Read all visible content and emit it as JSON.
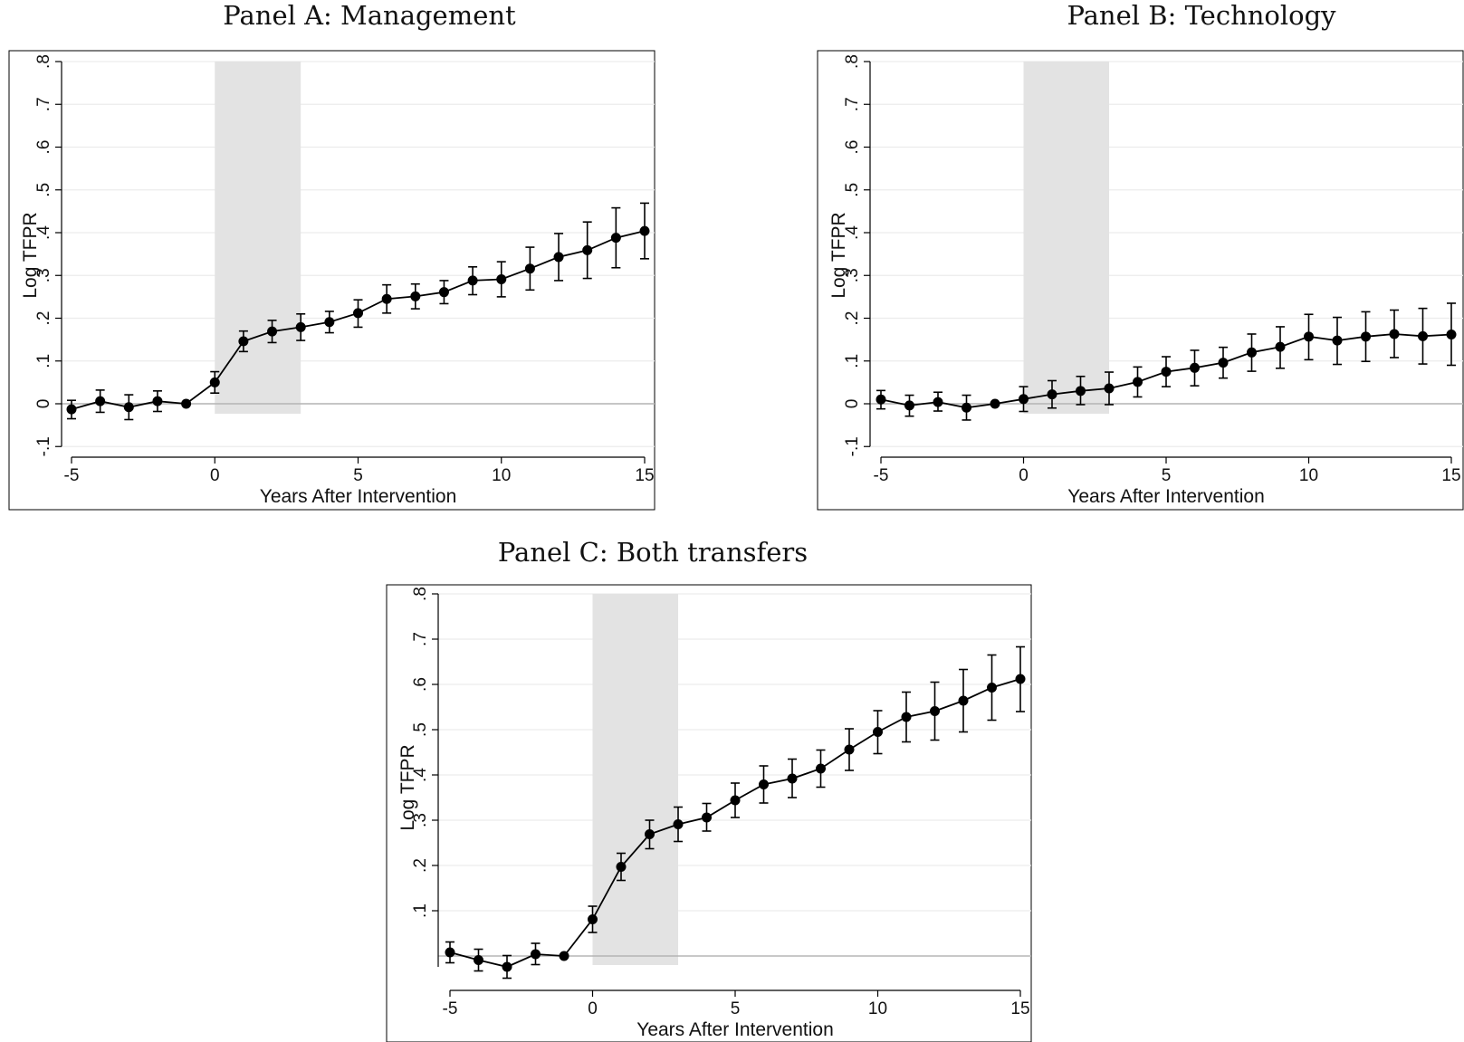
{
  "panels": {
    "a": {
      "title": "Panel A: Management"
    },
    "b": {
      "title": "Panel B: Technology"
    },
    "c": {
      "title": "Panel C: Both transfers"
    }
  },
  "colors": {
    "series": "#000000",
    "shade": "#e3e3e3",
    "grid": "#ececec",
    "zero_line": "#b5b5b5"
  },
  "chart_data": [
    {
      "type": "line",
      "title": "Panel A: Management",
      "xlabel": "Years After Intervention",
      "ylabel": "Log TFPR",
      "xlim": [
        -5,
        15
      ],
      "ylim": [
        -0.1,
        0.8
      ],
      "x_ticks": [
        -5,
        0,
        5,
        10,
        15
      ],
      "x_tick_labels": [
        "-5",
        "0",
        "5",
        "10",
        "15"
      ],
      "y_ticks": [
        -0.1,
        0,
        0.1,
        0.2,
        0.3,
        0.4,
        0.5,
        0.6,
        0.7,
        0.8
      ],
      "y_tick_labels": [
        "-.1",
        "0",
        ".1",
        ".2",
        ".3",
        ".4",
        ".5",
        ".6",
        ".7",
        ".8"
      ],
      "grid": true,
      "shaded_region": [
        0,
        3
      ],
      "reference_line": 0,
      "x": [
        -5,
        -4,
        -3,
        -2,
        -1,
        0,
        1,
        2,
        3,
        4,
        5,
        6,
        7,
        8,
        9,
        10,
        11,
        12,
        13,
        14,
        15
      ],
      "y": [
        -0.013,
        0.006,
        -0.008,
        0.006,
        0.0,
        0.05,
        0.146,
        0.169,
        0.179,
        0.191,
        0.212,
        0.245,
        0.251,
        0.261,
        0.288,
        0.291,
        0.316,
        0.343,
        0.359,
        0.388,
        0.404
      ],
      "ci_low": [
        -0.035,
        -0.02,
        -0.037,
        -0.018,
        0.0,
        0.025,
        0.122,
        0.143,
        0.148,
        0.166,
        0.179,
        0.212,
        0.222,
        0.234,
        0.255,
        0.25,
        0.266,
        0.288,
        0.293,
        0.318,
        0.339
      ],
      "ci_high": [
        0.008,
        0.032,
        0.021,
        0.03,
        0.0,
        0.075,
        0.17,
        0.195,
        0.21,
        0.216,
        0.243,
        0.278,
        0.28,
        0.288,
        0.32,
        0.332,
        0.366,
        0.398,
        0.425,
        0.458,
        0.469
      ]
    },
    {
      "type": "line",
      "title": "Panel B: Technology",
      "xlabel": "Years After Intervention",
      "ylabel": "Log TFPR",
      "xlim": [
        -5,
        15
      ],
      "ylim": [
        -0.1,
        0.8
      ],
      "x_ticks": [
        -5,
        0,
        5,
        10,
        15
      ],
      "x_tick_labels": [
        "-5",
        "0",
        "5",
        "10",
        "15"
      ],
      "y_ticks": [
        -0.1,
        0,
        0.1,
        0.2,
        0.3,
        0.4,
        0.5,
        0.6,
        0.7,
        0.8
      ],
      "y_tick_labels": [
        "-.1",
        "0",
        ".1",
        ".2",
        ".3",
        ".4",
        ".5",
        ".6",
        ".7",
        ".8"
      ],
      "grid": true,
      "shaded_region": [
        0,
        3
      ],
      "reference_line": 0,
      "x": [
        -5,
        -4,
        -3,
        -2,
        -1,
        0,
        1,
        2,
        3,
        4,
        5,
        6,
        7,
        8,
        9,
        10,
        11,
        12,
        13,
        14,
        15
      ],
      "y": [
        0.01,
        -0.004,
        0.004,
        -0.009,
        0.0,
        0.011,
        0.022,
        0.03,
        0.036,
        0.051,
        0.075,
        0.084,
        0.096,
        0.12,
        0.133,
        0.157,
        0.148,
        0.157,
        0.163,
        0.158,
        0.162
      ],
      "ci_low": [
        -0.012,
        -0.029,
        -0.017,
        -0.038,
        0.0,
        -0.018,
        -0.01,
        -0.002,
        -0.002,
        0.016,
        0.04,
        0.042,
        0.06,
        0.076,
        0.083,
        0.103,
        0.092,
        0.099,
        0.108,
        0.093,
        0.09
      ],
      "ci_high": [
        0.031,
        0.02,
        0.027,
        0.02,
        0.0,
        0.04,
        0.054,
        0.064,
        0.074,
        0.086,
        0.11,
        0.125,
        0.132,
        0.163,
        0.18,
        0.209,
        0.202,
        0.215,
        0.219,
        0.223,
        0.235
      ]
    },
    {
      "type": "line",
      "title": "Panel C: Both transfers",
      "xlabel": "Years After Intervention",
      "ylabel": "Log TFPR",
      "xlim": [
        -5,
        15
      ],
      "ylim": [
        0.0,
        0.8
      ],
      "x_ticks": [
        -5,
        0,
        5,
        10,
        15
      ],
      "x_tick_labels": [
        "-5",
        "0",
        "5",
        "10",
        "15"
      ],
      "y_ticks": [
        0.1,
        0.2,
        0.3,
        0.4,
        0.5,
        0.6,
        0.7,
        0.8
      ],
      "y_tick_labels": [
        ".1",
        ".2",
        ".3",
        ".4",
        ".5",
        ".6",
        ".7",
        ".8"
      ],
      "grid": true,
      "shaded_region": [
        0,
        3
      ],
      "reference_line": 0,
      "x": [
        -5,
        -4,
        -3,
        -2,
        -1,
        0,
        1,
        2,
        3,
        4,
        5,
        6,
        7,
        8,
        9,
        10,
        11,
        12,
        13,
        14,
        15
      ],
      "y": [
        0.008,
        -0.009,
        -0.024,
        0.004,
        0.0,
        0.081,
        0.197,
        0.269,
        0.291,
        0.306,
        0.344,
        0.379,
        0.392,
        0.414,
        0.456,
        0.495,
        0.528,
        0.541,
        0.564,
        0.593,
        0.612
      ],
      "ci_low": [
        -0.015,
        -0.033,
        -0.049,
        -0.019,
        0.0,
        0.052,
        0.167,
        0.237,
        0.253,
        0.276,
        0.306,
        0.338,
        0.35,
        0.373,
        0.41,
        0.447,
        0.473,
        0.477,
        0.495,
        0.521,
        0.54
      ],
      "ci_high": [
        0.031,
        0.015,
        0.001,
        0.028,
        0.0,
        0.11,
        0.227,
        0.3,
        0.329,
        0.337,
        0.382,
        0.42,
        0.435,
        0.455,
        0.502,
        0.542,
        0.583,
        0.605,
        0.633,
        0.665,
        0.683
      ]
    }
  ]
}
